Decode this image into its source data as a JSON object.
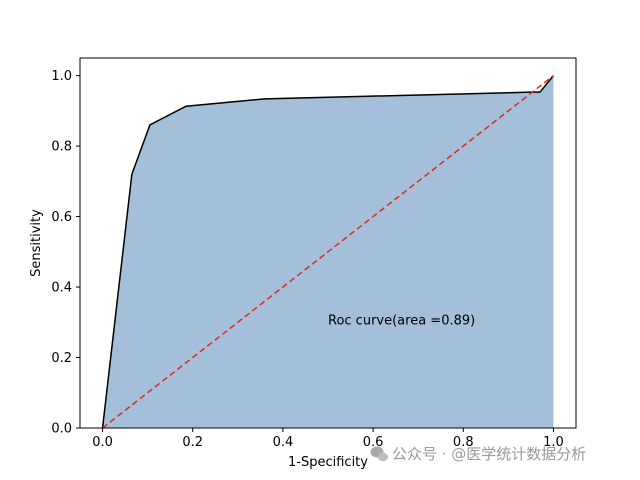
{
  "chart_data": {
    "type": "area",
    "xlabel": "1-Specificity",
    "ylabel": "Sensitivity",
    "xlim": [
      -0.05,
      1.05
    ],
    "ylim": [
      0,
      1.05
    ],
    "xticks": [
      "0.0",
      "0.2",
      "0.4",
      "0.6",
      "0.8",
      "1.0"
    ],
    "yticks": [
      "0.0",
      "0.2",
      "0.4",
      "0.6",
      "0.8",
      "1.0"
    ],
    "grid": false,
    "series": [
      {
        "x": [
          0.0,
          0.065,
          0.105,
          0.15,
          0.185,
          0.36,
          0.95,
          0.97,
          1.0
        ],
        "y": [
          0.0,
          0.72,
          0.86,
          0.89,
          0.913,
          0.934,
          0.953,
          0.953,
          1.0
        ],
        "line_color": "#000000",
        "fill_color": "#a3bfd9"
      }
    ],
    "reference_line": {
      "x": [
        0,
        1
      ],
      "y": [
        0,
        1
      ],
      "color": "#e3261f",
      "style": "dashed"
    },
    "annotation": {
      "text": "Roc curve(area =0.89)",
      "x": 0.5,
      "y": 0.3
    }
  },
  "watermark": {
    "text": "公众号 · @医学统计数据分析",
    "icon": "wechat-icon",
    "color": "#9a9a9a"
  }
}
